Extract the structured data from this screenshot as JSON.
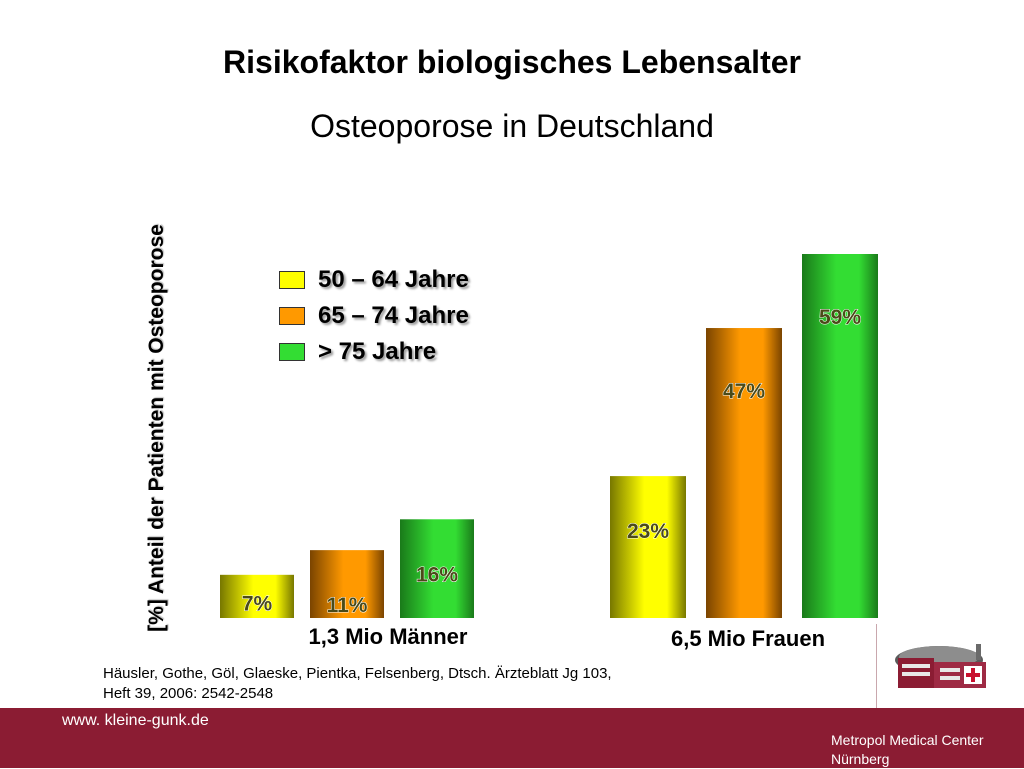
{
  "slide": {
    "title": "Risikofaktor biologisches Lebensalter",
    "subtitle": "Osteoporose in Deutschland",
    "citation_line1": "Häusler, Gothe, Göl, Glaeske, Pientka, Felsenberg, Dtsch. Ärzteblatt Jg 103,",
    "citation_line2": "Heft 39, 2006: 2542-2548"
  },
  "legend": {
    "items": [
      {
        "label": "50 – 64 Jahre",
        "color": "#ffff00"
      },
      {
        "label": "65 – 74 Jahre",
        "color": "#ff9900"
      },
      {
        "label": "> 75 Jahre",
        "color": "#33dd33"
      }
    ]
  },
  "chart_data": {
    "type": "bar",
    "title": "Risikofaktor biologisches Lebensalter",
    "subtitle": "Osteoporose in Deutschland",
    "xlabel": "",
    "ylabel": "[%] Anteil der Patienten mit Osteoporose",
    "categories": [
      "1,3 Mio Männer",
      "6,5 Mio Frauen"
    ],
    "series": [
      {
        "name": "50 – 64 Jahre",
        "values": [
          7,
          23
        ],
        "labels": [
          "7%",
          "23%"
        ],
        "color": "#ffff00"
      },
      {
        "name": "65 – 74 Jahre",
        "values": [
          11,
          47
        ],
        "labels": [
          "11%",
          "47%"
        ],
        "color": "#ff9900"
      },
      {
        "name": "> 75 Jahre",
        "values": [
          16,
          59
        ],
        "labels": [
          "16%",
          "59%"
        ],
        "color": "#33dd33"
      }
    ],
    "ylim": [
      0,
      59
    ],
    "grid": false,
    "legend_position": "top-left"
  },
  "footer": {
    "url": "www. kleine-gunk.de",
    "org_line1": "Metropol Medical Center",
    "org_line2": "Nürnberg",
    "background": "#8b1c33"
  },
  "logo": {
    "icon": "hospital-building-icon"
  }
}
